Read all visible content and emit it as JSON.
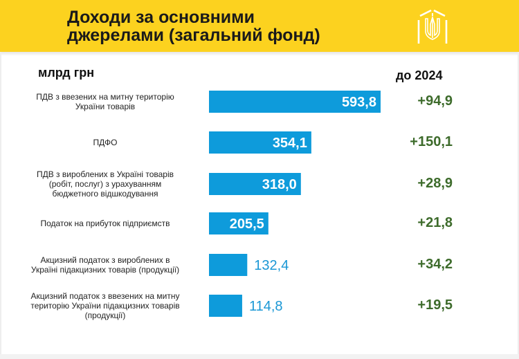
{
  "header": {
    "title_line1": "Доходи за основними",
    "title_line2": "джерелами (загальний фонд)",
    "logo": "trident-emblem-icon"
  },
  "colors": {
    "banner": "#fcd21f",
    "bar": "#0e9bdb",
    "label_outside": "#1a97d5",
    "delta": "#3d6b2b"
  },
  "chart_data": {
    "type": "bar",
    "orientation": "horizontal",
    "unit_label": "млрд грн",
    "delta_header": "до 2024",
    "categories": [
      [
        "ПДВ з ввезених на митну територію",
        "України товарів"
      ],
      [
        "ПДФО"
      ],
      [
        "ПДВ з вироблених в Україні товарів",
        "(робіт, послуг) з урахуванням",
        "бюджетного відшкодування"
      ],
      [
        "Податок на прибуток підприємств"
      ],
      [
        "Акцизний податок з вироблених в",
        "Україні підакцизних товарів (продукції)"
      ],
      [
        "Акцизний податок з ввезених на митну",
        "територію України підакцизних товарів",
        "(продукції)"
      ]
    ],
    "values": [
      593.8,
      354.1,
      318.0,
      205.5,
      132.4,
      114.8
    ],
    "value_labels": [
      "593,8",
      "354,1",
      "318,0",
      "205,5",
      "132,4",
      "114,8"
    ],
    "deltas": [
      "+94,9",
      "+150,1",
      "+28,9",
      "+21,8",
      "+34,2",
      "+19,5"
    ],
    "xlim": [
      0,
      600
    ]
  }
}
